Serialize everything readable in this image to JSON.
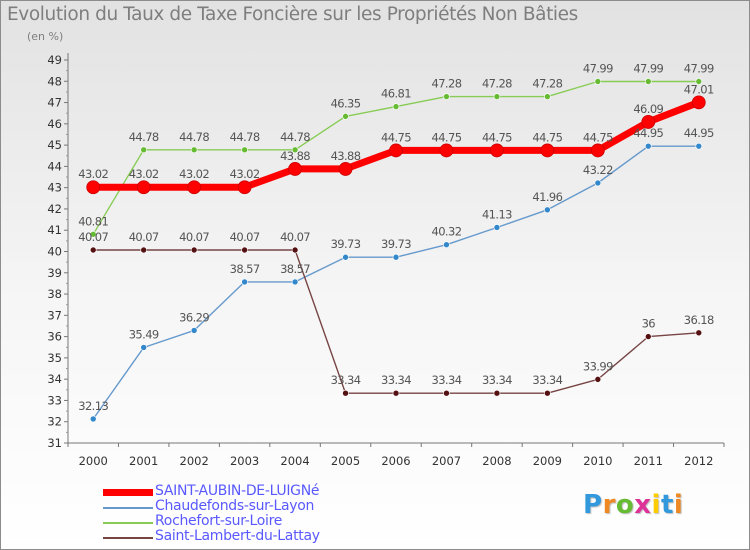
{
  "title": "Evolution du Taux de Taxe Foncière sur les Propriétés Non Bâties",
  "subtitle": "(en %)",
  "logo": {
    "text": "Proxiti",
    "colors": [
      "#3399dd",
      "#ee8822",
      "#66bb33",
      "#dd3399",
      "#ffcc00",
      "#3399dd",
      "#ee8822"
    ]
  },
  "chart_data": {
    "type": "line",
    "x": [
      "2000",
      "2001",
      "2002",
      "2003",
      "2004",
      "2005",
      "2006",
      "2007",
      "2008",
      "2009",
      "2010",
      "2011",
      "2012"
    ],
    "ylim": [
      31,
      49
    ],
    "yticks": [
      31,
      32,
      33,
      34,
      35,
      36,
      37,
      38,
      39,
      40,
      41,
      42,
      43,
      44,
      45,
      46,
      47,
      48,
      49
    ],
    "grid": false,
    "legend_position": "bottom-left",
    "series": [
      {
        "name": "SAINT-AUBIN-DE-LUIGNé",
        "color": "#ff0000",
        "marker_color": "#dd0000",
        "emphasis": true,
        "values": [
          43.02,
          43.02,
          43.02,
          43.02,
          43.88,
          43.88,
          44.75,
          44.75,
          44.75,
          44.75,
          44.75,
          46.09,
          47.01
        ],
        "labels": [
          "43.02",
          "43.02",
          "43.02",
          "43.02",
          "43.88",
          "43.88",
          "44.75",
          "44.75",
          "44.75",
          "44.75",
          "44.75",
          "46.09",
          "47.01"
        ]
      },
      {
        "name": "Chaudefonds-sur-Layon",
        "color": "#6699cc",
        "marker_color": "#3388cc",
        "values": [
          32.13,
          35.49,
          36.29,
          38.57,
          38.57,
          39.73,
          39.73,
          40.32,
          41.13,
          41.96,
          43.22,
          44.95,
          44.95
        ],
        "labels": [
          "32.13",
          "35.49",
          "36.29",
          "38.57",
          "38.57",
          "39.73",
          "39.73",
          "40.32",
          "41.13",
          "41.96",
          "43.22",
          "44.95",
          "44.95"
        ]
      },
      {
        "name": "Rochefort-sur-Loire",
        "color": "#88cc55",
        "marker_color": "#66bb33",
        "values": [
          40.81,
          44.78,
          44.78,
          44.78,
          44.78,
          46.35,
          46.81,
          47.28,
          47.28,
          47.28,
          47.99,
          47.99,
          47.99
        ],
        "labels": [
          "40.81",
          "44.78",
          "44.78",
          "44.78",
          "44.78",
          "46.35",
          "46.81",
          "47.28",
          "47.28",
          "47.28",
          "47.99",
          "47.99",
          "47.99"
        ]
      },
      {
        "name": "Saint-Lambert-du-Lattay",
        "color": "#774444",
        "marker_color": "#551111",
        "values": [
          40.07,
          40.07,
          40.07,
          40.07,
          40.07,
          33.34,
          33.34,
          33.34,
          33.34,
          33.34,
          33.99,
          36,
          36.18
        ],
        "labels": [
          "40.07",
          "40.07",
          "40.07",
          "40.07",
          "40.07",
          "33.34",
          "33.34",
          "33.34",
          "33.34",
          "33.34",
          "33.99",
          "36",
          "36.18"
        ]
      }
    ]
  }
}
